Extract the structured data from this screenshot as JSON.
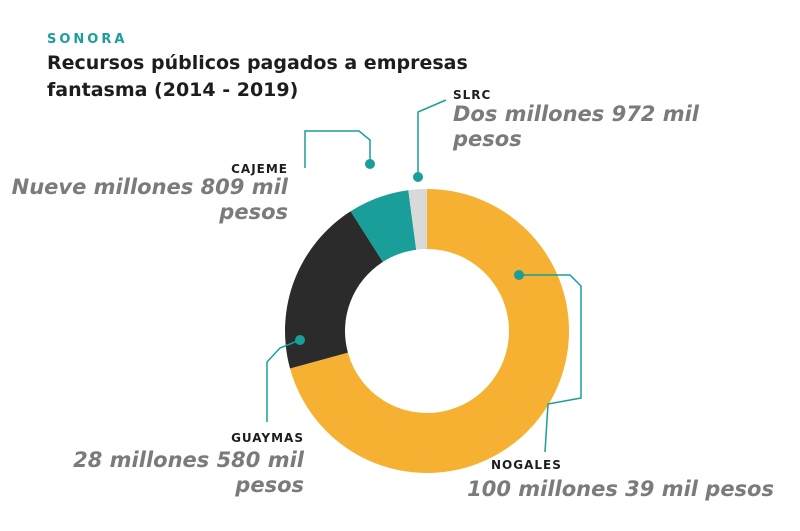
{
  "header": {
    "region": "SONORA",
    "title": "Recursos públicos pagados a empresas fantasma (2014 - 2019)"
  },
  "chart_data": {
    "type": "pie",
    "variant": "donut",
    "title": "Recursos públicos pagados a empresas fantasma (2014 - 2019)",
    "slices": [
      {
        "name": "NOGALES",
        "value": 100.039,
        "value_label_1": "100 millones 39 mil pesos",
        "value_label_2": "",
        "color": "#f6b133"
      },
      {
        "name": "GUAYMAS",
        "value": 28.58,
        "value_label_1": "28 millones 580 mil",
        "value_label_2": "pesos",
        "color": "#2b2b2b"
      },
      {
        "name": "CAJEME",
        "value": 9.809,
        "value_label_1": "Nueve millones 809 mil",
        "value_label_2": "pesos",
        "color": "#1a9e9a"
      },
      {
        "name": "SLRC",
        "value": 2.972,
        "value_label_1": "Dos millones 972 mil",
        "value_label_2": "pesos",
        "color": "#d9d9d9"
      }
    ],
    "legend": "none",
    "leader_color": "#1a9e9a"
  }
}
